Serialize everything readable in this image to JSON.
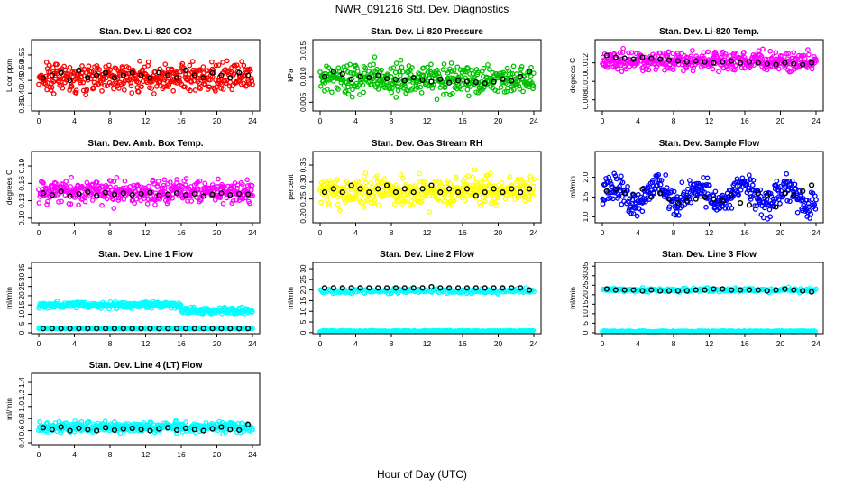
{
  "figure": {
    "title": "NWR_091216  Std. Dev. Diagnostics",
    "xlabel": "Hour of Day (UTC)"
  },
  "chart_data": [
    {
      "type": "scatter",
      "title": "Stan. Dev. Li-820 CO2",
      "ylabel": "Licor ppm",
      "color": "#ff0000",
      "xlim": [
        0,
        24
      ],
      "ylim": [
        0.33,
        0.61
      ],
      "xticks": [
        0,
        4,
        8,
        12,
        16,
        20,
        24
      ],
      "yticks": [
        0.35,
        0.4,
        0.45,
        0.5,
        0.55
      ],
      "ytick_labels": [
        "0.35",
        "0.40",
        "0.45",
        "0.50",
        "0.55"
      ],
      "series": [
        {
          "name": "all",
          "center": 0.465,
          "spread": 0.04
        },
        {
          "name": "hourly",
          "values": [
            0.46,
            0.47,
            0.48,
            0.45,
            0.49,
            0.46,
            0.47,
            0.48,
            0.46,
            0.47,
            0.48,
            0.47,
            0.46,
            0.48,
            0.47,
            0.46,
            0.49,
            0.47,
            0.46,
            0.48,
            0.47,
            0.46,
            0.48,
            0.47
          ]
        }
      ]
    },
    {
      "type": "scatter",
      "title": "Stan. Dev. Li-820 Pressure",
      "ylabel": "kPa",
      "color": "#00c000",
      "xlim": [
        0,
        24
      ],
      "ylim": [
        0.0033,
        0.0172
      ],
      "xticks": [
        0,
        4,
        8,
        12,
        16,
        20,
        24
      ],
      "yticks": [
        0.005,
        0.01,
        0.015
      ],
      "ytick_labels": [
        "0.005",
        "0.010",
        "0.015"
      ],
      "series": [
        {
          "name": "all",
          "center": 0.0095,
          "spread": 0.002
        },
        {
          "name": "hourly",
          "values": [
            0.01,
            0.011,
            0.0105,
            0.0095,
            0.01,
            0.0098,
            0.0102,
            0.0096,
            0.0094,
            0.0092,
            0.0098,
            0.0093,
            0.009,
            0.0095,
            0.0088,
            0.0092,
            0.009,
            0.0089,
            0.0087,
            0.009,
            0.0095,
            0.0092,
            0.01,
            0.011
          ]
        }
      ]
    },
    {
      "type": "scatter",
      "title": "Stan. Dev. Li-820 Temp.",
      "ylabel": "degrees C",
      "color": "#ff00ff",
      "xlim": [
        0,
        24
      ],
      "ylim": [
        0.0068,
        0.0145
      ],
      "xticks": [
        0,
        4,
        8,
        12,
        16,
        20,
        24
      ],
      "yticks": [
        0.008,
        0.01,
        0.012
      ],
      "ytick_labels": [
        "0.008",
        "0.010",
        "0.012"
      ],
      "series": [
        {
          "name": "all",
          "center": 0.0122,
          "spread": 0.0007
        },
        {
          "name": "hourly",
          "values": [
            0.0128,
            0.0126,
            0.0125,
            0.0124,
            0.0126,
            0.0125,
            0.0124,
            0.0123,
            0.0122,
            0.0121,
            0.0122,
            0.0121,
            0.012,
            0.0121,
            0.0122,
            0.012,
            0.0121,
            0.012,
            0.0119,
            0.0118,
            0.012,
            0.0119,
            0.0118,
            0.012
          ]
        }
      ]
    },
    {
      "type": "scatter",
      "title": "Stan. Dev. Amb. Box Temp.",
      "ylabel": "degrees C",
      "color": "#ff00ff",
      "xlim": [
        0,
        24
      ],
      "ylim": [
        0.092,
        0.215
      ],
      "xticks": [
        0,
        4,
        8,
        12,
        16,
        20,
        24
      ],
      "yticks": [
        0.1,
        0.13,
        0.16,
        0.19
      ],
      "ytick_labels": [
        "0.10",
        "0.13",
        "0.16",
        "0.19"
      ],
      "series": [
        {
          "name": "all",
          "center": 0.145,
          "spread": 0.014
        },
        {
          "name": "hourly",
          "values": [
            0.143,
            0.14,
            0.146,
            0.138,
            0.142,
            0.145,
            0.139,
            0.144,
            0.141,
            0.143,
            0.14,
            0.142,
            0.144,
            0.139,
            0.141,
            0.143,
            0.14,
            0.142,
            0.138,
            0.141,
            0.143,
            0.14,
            0.142,
            0.141
          ]
        }
      ]
    },
    {
      "type": "scatter",
      "title": "Stan. Dev. Gas Stream RH",
      "ylabel": "percent",
      "color": "#ffff00",
      "xlim": [
        0,
        24
      ],
      "ylim": [
        0.18,
        0.39
      ],
      "xticks": [
        0,
        4,
        8,
        12,
        16,
        20,
        24
      ],
      "yticks": [
        0.2,
        0.25,
        0.3,
        0.35
      ],
      "ytick_labels": [
        "0.20",
        "0.25",
        "0.30",
        "0.35"
      ],
      "series": [
        {
          "name": "all",
          "center": 0.275,
          "spread": 0.028
        },
        {
          "name": "hourly",
          "values": [
            0.27,
            0.28,
            0.27,
            0.29,
            0.28,
            0.27,
            0.28,
            0.29,
            0.27,
            0.28,
            0.27,
            0.28,
            0.29,
            0.27,
            0.28,
            0.27,
            0.28,
            0.26,
            0.27,
            0.28,
            0.27,
            0.28,
            0.27,
            0.28
          ]
        }
      ]
    },
    {
      "type": "scatter",
      "title": "Stan. Dev. Sample Flow",
      "ylabel": "ml/min",
      "color": "#0000ff",
      "xlim": [
        0,
        24
      ],
      "ylim": [
        0.85,
        2.65
      ],
      "xticks": [
        0,
        4,
        8,
        12,
        16,
        20,
        24
      ],
      "yticks": [
        1.0,
        1.5,
        2.0
      ],
      "ytick_labels": [
        "1.0",
        "1.5",
        "2.0"
      ],
      "series": [
        {
          "name": "all",
          "center": 1.55,
          "spread": 0.25
        },
        {
          "name": "hourly",
          "values": [
            1.65,
            1.7,
            1.6,
            1.55,
            1.7,
            1.5,
            1.6,
            1.45,
            1.35,
            1.4,
            1.45,
            1.5,
            1.45,
            1.4,
            1.55,
            1.35,
            1.3,
            1.6,
            1.55,
            1.25,
            1.6,
            1.55,
            1.65,
            1.8
          ]
        }
      ]
    },
    {
      "type": "scatter",
      "title": "Stan. Dev. Line 1 Flow",
      "ylabel": "ml/min",
      "color": "#00ffff",
      "xlim": [
        0,
        24
      ],
      "ylim": [
        -0.5,
        38
      ],
      "xticks": [
        0,
        4,
        8,
        12,
        16,
        20,
        24
      ],
      "yticks": [
        0,
        5,
        10,
        15,
        20,
        25,
        30,
        35
      ],
      "ytick_labels": [
        "0",
        "5",
        "10",
        "15",
        "20",
        "25",
        "30",
        "35"
      ],
      "series": [
        {
          "name": "all",
          "center": 15,
          "spread": 1.2
        },
        {
          "name": "hourly",
          "values": [
            2.3,
            2.3,
            2.3,
            2.3,
            2.3,
            2.3,
            2.3,
            2.3,
            2.3,
            2.3,
            2.3,
            2.3,
            2.3,
            2.3,
            2.3,
            2.3,
            2.3,
            2.3,
            2.3,
            2.3,
            2.3,
            2.3,
            2.3,
            2.3
          ]
        }
      ]
    },
    {
      "type": "scatter",
      "title": "Stan. Dev. Line 2 Flow",
      "ylabel": "ml/min",
      "color": "#00ffff",
      "xlim": [
        0,
        24
      ],
      "ylim": [
        -0.5,
        33
      ],
      "xticks": [
        0,
        4,
        8,
        12,
        16,
        20,
        24
      ],
      "yticks": [
        0,
        5,
        10,
        15,
        20,
        25,
        30
      ],
      "ytick_labels": [
        "0",
        "5",
        "10",
        "15",
        "20",
        "25",
        "30"
      ],
      "series": [
        {
          "name": "all",
          "center": 19.5,
          "spread": 0.8
        },
        {
          "name": "hourly",
          "values": [
            21,
            21,
            21,
            21,
            21,
            21,
            21,
            21,
            21,
            21,
            21,
            21,
            21.5,
            21,
            21,
            21,
            21,
            21,
            21,
            21,
            21,
            21,
            21,
            20
          ]
        }
      ]
    },
    {
      "type": "scatter",
      "title": "Stan. Dev. Line 3 Flow",
      "ylabel": "ml/min",
      "color": "#00ffff",
      "xlim": [
        0,
        24
      ],
      "ylim": [
        -0.5,
        37
      ],
      "xticks": [
        0,
        4,
        8,
        12,
        16,
        20,
        24
      ],
      "yticks": [
        0,
        5,
        10,
        15,
        20,
        25,
        30,
        35
      ],
      "ytick_labels": [
        "0",
        "5",
        "10",
        "15",
        "20",
        "25",
        "30",
        "35"
      ],
      "series": [
        {
          "name": "all",
          "center": 22.5,
          "spread": 0.8
        },
        {
          "name": "hourly",
          "values": [
            23,
            22.5,
            22.5,
            22.5,
            22,
            22.5,
            22,
            22,
            22,
            22,
            22.5,
            22.5,
            23,
            23,
            22.5,
            22.5,
            22.5,
            22.5,
            22,
            22.5,
            23,
            22.5,
            22,
            21.5
          ]
        }
      ]
    },
    {
      "type": "scatter",
      "title": "Stan. Dev. Line 4 (LT) Flow",
      "ylabel": "ml/min",
      "color": "#00ffff",
      "xlim": [
        0,
        24
      ],
      "ylim": [
        0.37,
        1.55
      ],
      "xticks": [
        0,
        4,
        8,
        12,
        16,
        20,
        24
      ],
      "yticks": [
        0.4,
        0.6,
        0.8,
        1.0,
        1.2,
        1.4
      ],
      "ytick_labels": [
        "0.4",
        "0.6",
        "0.8",
        "1.0",
        "1.2",
        "1.4"
      ],
      "series": [
        {
          "name": "all",
          "center": 0.66,
          "spread": 0.06
        },
        {
          "name": "hourly",
          "values": [
            0.65,
            0.62,
            0.66,
            0.6,
            0.64,
            0.62,
            0.6,
            0.65,
            0.61,
            0.63,
            0.64,
            0.62,
            0.6,
            0.63,
            0.65,
            0.61,
            0.64,
            0.62,
            0.6,
            0.63,
            0.66,
            0.62,
            0.61,
            0.7
          ]
        }
      ]
    }
  ]
}
